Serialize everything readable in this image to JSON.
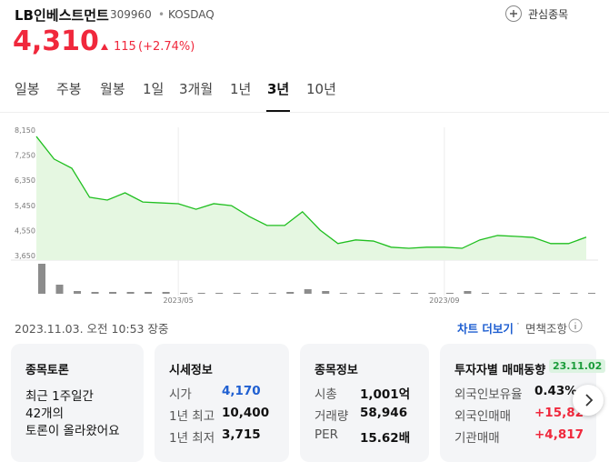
{
  "header": {
    "name": "LB인베스트먼트",
    "code": "309960",
    "market": "KOSDAQ",
    "watch": "관심종목",
    "price": "4,310",
    "change": "115",
    "change_pct": "(+2.74%)"
  },
  "tabs": {
    "items": [
      "일봉",
      "주봉",
      "월봉",
      "1일",
      "3개월",
      "1년",
      "3년",
      "10년"
    ],
    "active": 6
  },
  "chart_data": {
    "type": "line",
    "color": "#1fbf1f",
    "fill": "#e5f7e1",
    "categories": [
      null,
      null,
      null,
      null,
      null,
      null,
      null,
      null,
      "2023/05",
      null,
      null,
      null,
      null,
      null,
      null,
      null,
      null,
      null,
      null,
      null,
      null,
      null,
      null,
      "2023/09",
      null,
      null,
      null,
      null,
      null,
      null,
      null,
      null
    ],
    "values": [
      7920,
      7110,
      6780,
      5740,
      5640,
      5900,
      5570,
      5540,
      5510,
      5310,
      5510,
      5440,
      5050,
      4730,
      4730,
      5220,
      4560,
      4080,
      4210,
      4170,
      3950,
      3910,
      3950,
      3950,
      3910,
      4210,
      4370,
      4340,
      4300,
      4080,
      4080,
      4310
    ],
    "volume": [
      33,
      10,
      3,
      2,
      2,
      2,
      2,
      2,
      1,
      1,
      1,
      1,
      1,
      1,
      2,
      5,
      3,
      1,
      1,
      1,
      1,
      1,
      1,
      1,
      3,
      1,
      1,
      1,
      1,
      1,
      1,
      1
    ],
    "ylim": [
      3650,
      8150
    ],
    "yticks": [
      {
        "value": 8150,
        "label": "8,150"
      },
      {
        "value": 7250,
        "label": "7,250"
      },
      {
        "value": 6350,
        "label": "6,350"
      },
      {
        "value": 5450,
        "label": "5,450"
      },
      {
        "value": 4550,
        "label": "4,550"
      },
      {
        "value": 3650,
        "label": "3,650"
      }
    ]
  },
  "footer": {
    "time": "2023.11.03. 오전 10:53 장중",
    "more": "차트 더보기",
    "disclaimer": "면책조항"
  },
  "cards": [
    {
      "title": "종목토론",
      "lines": [
        "최근 1주일간",
        "42개의",
        "토론이 올라왔어요"
      ]
    },
    {
      "title": "시세정보",
      "rows": [
        [
          "시가",
          "4,170"
        ],
        [
          "1년 최고",
          "10,400"
        ],
        [
          "1년 최저",
          "3,715"
        ]
      ]
    },
    {
      "title": "종목정보",
      "rows": [
        [
          "시총",
          "1,001억"
        ],
        [
          "거래량",
          "58,946"
        ],
        [
          "PER",
          "15.62배"
        ]
      ]
    },
    {
      "title": "투자자별 매매동향",
      "badge": "23.11.02",
      "rows": [
        [
          "외국인보유율",
          "0.43%"
        ],
        [
          "외국인매매",
          "+15,82"
        ],
        [
          "기관매매",
          "+4,817"
        ]
      ]
    }
  ]
}
